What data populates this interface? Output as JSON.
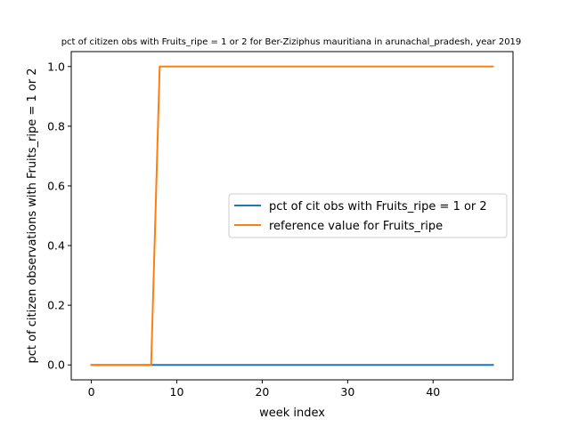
{
  "chart_data": {
    "type": "line",
    "title": "pct of citizen obs with Fruits_ripe = 1 or 2 for Ber-Ziziphus mauritiana in arunachal_pradesh, year 2019",
    "xlabel": "week index",
    "ylabel": "pct of citizen observations with Fruits_ripe = 1 or 2",
    "xlim": [
      -2.35,
      49.35
    ],
    "ylim": [
      -0.05,
      1.05
    ],
    "xticks": [
      0,
      10,
      20,
      30,
      40
    ],
    "yticks": [
      0.0,
      0.2,
      0.4,
      0.6,
      0.8,
      1.0
    ],
    "xtick_labels": [
      "0",
      "10",
      "20",
      "30",
      "40"
    ],
    "ytick_labels": [
      "0.0",
      "0.2",
      "0.4",
      "0.6",
      "0.8",
      "1.0"
    ],
    "grid": false,
    "legend_position": "center-right",
    "x": [
      0,
      1,
      2,
      3,
      4,
      5,
      6,
      7,
      8,
      9,
      10,
      11,
      12,
      13,
      14,
      15,
      16,
      17,
      18,
      19,
      20,
      21,
      22,
      23,
      24,
      25,
      26,
      27,
      28,
      29,
      30,
      31,
      32,
      33,
      34,
      35,
      36,
      37,
      38,
      39,
      40,
      41,
      42,
      43,
      44,
      45,
      46,
      47
    ],
    "series": [
      {
        "name": "pct of cit obs with Fruits_ripe = 1 or 2",
        "color": "#1f77b4",
        "values": [
          0,
          0,
          0,
          0,
          0,
          0,
          0,
          0,
          0,
          0,
          0,
          0,
          0,
          0,
          0,
          0,
          0,
          0,
          0,
          0,
          0,
          0,
          0,
          0,
          0,
          0,
          0,
          0,
          0,
          0,
          0,
          0,
          0,
          0,
          0,
          0,
          0,
          0,
          0,
          0,
          0,
          0,
          0,
          0,
          0,
          0,
          0,
          0
        ]
      },
      {
        "name": "reference value for Fruits_ripe",
        "color": "#ff7f0e",
        "values": [
          0,
          0,
          0,
          0,
          0,
          0,
          0,
          0,
          1,
          1,
          1,
          1,
          1,
          1,
          1,
          1,
          1,
          1,
          1,
          1,
          1,
          1,
          1,
          1,
          1,
          1,
          1,
          1,
          1,
          1,
          1,
          1,
          1,
          1,
          1,
          1,
          1,
          1,
          1,
          1,
          1,
          1,
          1,
          1,
          1,
          1,
          1,
          1
        ]
      }
    ]
  }
}
